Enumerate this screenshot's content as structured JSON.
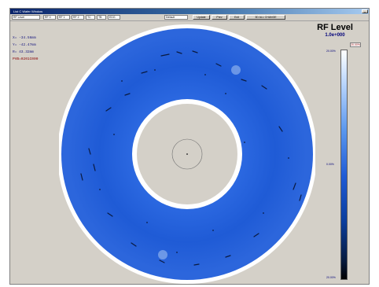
{
  "window": {
    "title": "List C Wafer Window"
  },
  "toolbar": {
    "combo_main": "RF Level",
    "fields": [
      "RF 0",
      "RF 1",
      "RF 2",
      "TC",
      "TB",
      "EDG"
    ],
    "preset": "Default",
    "buttons": {
      "update": "Update",
      "prev": "Prev",
      "exit": "Exit",
      "change_all": "3D ALL CHANGE"
    }
  },
  "coords": {
    "x": "X= -34.56mm",
    "y": "Y= -42.47mm",
    "r": "R= 43.32mm",
    "pvb": "PVB=0201C000"
  },
  "legend": {
    "title": "RF Level",
    "value": "1.0e+000",
    "top": "20.00%",
    "mid": "0.00%",
    "bottom": "20.00%",
    "selector": "20.00%"
  },
  "colors": {
    "wafer_blue": "#1f5bd6",
    "window_bg": "#d4d0c8",
    "title_dark": "#0a246a"
  }
}
